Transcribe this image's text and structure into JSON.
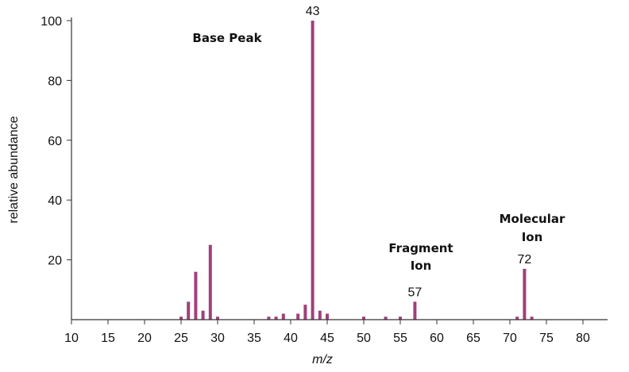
{
  "chart_data": {
    "type": "bar",
    "xlabel": "m/z",
    "ylabel": "relative abundance",
    "xlim": [
      10,
      84
    ],
    "ylim": [
      0,
      100
    ],
    "xticks": [
      10,
      15,
      20,
      25,
      30,
      35,
      40,
      45,
      50,
      55,
      60,
      65,
      70,
      75,
      80
    ],
    "yticks": [
      20,
      40,
      60,
      80,
      100
    ],
    "bar_color": "#a0407a",
    "peaks": [
      {
        "mz": 25,
        "abundance": 1
      },
      {
        "mz": 26,
        "abundance": 6
      },
      {
        "mz": 27,
        "abundance": 16
      },
      {
        "mz": 28,
        "abundance": 3
      },
      {
        "mz": 29,
        "abundance": 25
      },
      {
        "mz": 30,
        "abundance": 1
      },
      {
        "mz": 37,
        "abundance": 1
      },
      {
        "mz": 38,
        "abundance": 1
      },
      {
        "mz": 39,
        "abundance": 2
      },
      {
        "mz": 41,
        "abundance": 2
      },
      {
        "mz": 42,
        "abundance": 5
      },
      {
        "mz": 43,
        "abundance": 100
      },
      {
        "mz": 44,
        "abundance": 3
      },
      {
        "mz": 45,
        "abundance": 2
      },
      {
        "mz": 50,
        "abundance": 1
      },
      {
        "mz": 53,
        "abundance": 1
      },
      {
        "mz": 55,
        "abundance": 1
      },
      {
        "mz": 57,
        "abundance": 6
      },
      {
        "mz": 71,
        "abundance": 1
      },
      {
        "mz": 72,
        "abundance": 17
      },
      {
        "mz": 73,
        "abundance": 1
      }
    ],
    "peak_labels": [
      {
        "mz": 43,
        "text": "43"
      },
      {
        "mz": 57,
        "text": "57"
      },
      {
        "mz": 72,
        "text": "72"
      }
    ],
    "annotations": {
      "base_peak": "Base Peak",
      "fragment_line1": "Fragment",
      "fragment_line2": "Ion",
      "molecular_line1": "Molecular",
      "molecular_line2": "Ion"
    }
  }
}
